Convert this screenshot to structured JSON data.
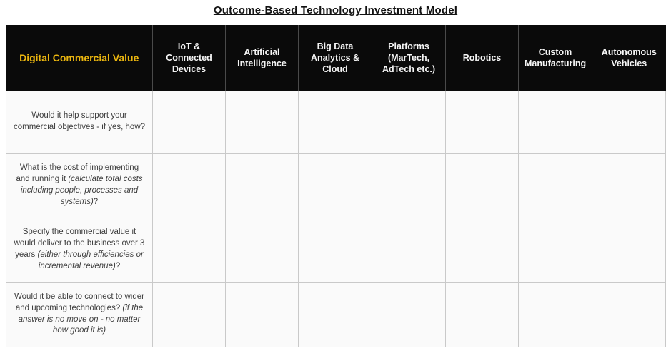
{
  "title": "Outcome-Based Technology Investment Model",
  "colors": {
    "header_background": "#0a0a0a",
    "header_text": "#f5f5f5",
    "first_column_header_text": "#ebb60f",
    "body_text": "#3d3d3d",
    "cell_background": "#fafafa",
    "grid_border": "#c9c9c9"
  },
  "table": {
    "header": {
      "first_column": "Digital Commercial Value",
      "columns": [
        "IoT & Connected Devices",
        "Artificial Intelligence",
        "Big Data Analytics & Cloud",
        "Platforms (MarTech, AdTech etc.)",
        "Robotics",
        "Custom Manufacturing",
        "Autonomous Vehicles"
      ]
    },
    "rows": [
      {
        "segments": [
          {
            "text": "Would it help support your commercial objectives - if yes, how?",
            "italic": false
          }
        ],
        "cells": [
          "",
          "",
          "",
          "",
          "",
          "",
          ""
        ]
      },
      {
        "segments": [
          {
            "text": "What is the cost of implementing and running it ",
            "italic": false
          },
          {
            "text": "(calculate total costs including people, processes and systems)",
            "italic": true
          },
          {
            "text": "?",
            "italic": false
          }
        ],
        "cells": [
          "",
          "",
          "",
          "",
          "",
          "",
          ""
        ]
      },
      {
        "segments": [
          {
            "text": "Specify the commercial value it would deliver to the business over 3 years ",
            "italic": false
          },
          {
            "text": "(either through efficiencies or incremental revenue)",
            "italic": true
          },
          {
            "text": "?",
            "italic": false
          }
        ],
        "cells": [
          "",
          "",
          "",
          "",
          "",
          "",
          ""
        ]
      },
      {
        "segments": [
          {
            "text": "Would it be able to connect to wider and upcoming technologies? ",
            "italic": false
          },
          {
            "text": "(if the answer is no move on - no matter how good it is)",
            "italic": true
          }
        ],
        "cells": [
          "",
          "",
          "",
          "",
          "",
          "",
          ""
        ]
      }
    ]
  }
}
